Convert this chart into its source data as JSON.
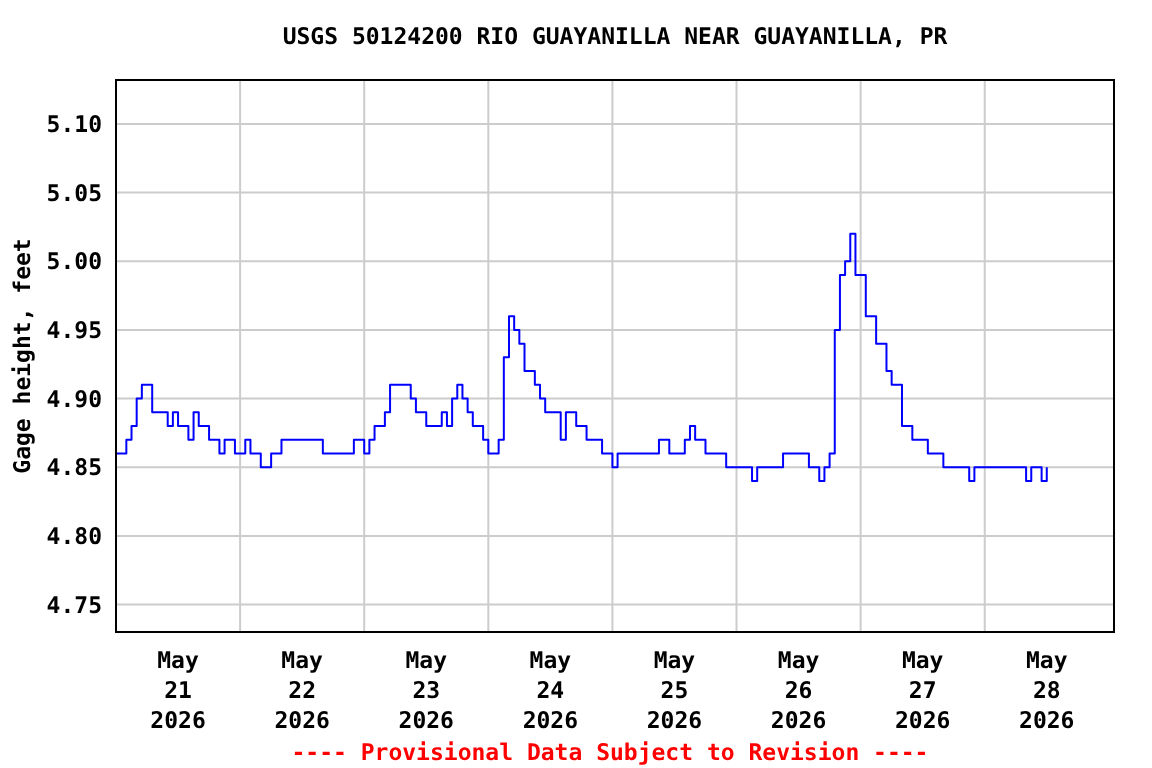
{
  "chart_data": {
    "type": "step",
    "title": "USGS 50124200 RIO GUAYANILLA NEAR GUAYANILLA, PR",
    "ylabel": "Gage height, feet",
    "annotations": [
      "---- Provisional Data Subject to Revision ----"
    ],
    "xlim": [
      "2026-05-21T00:00",
      "2026-05-29T01:00"
    ],
    "xticks": [
      {
        "value": "2026-05-21T12:00",
        "label": "May\n21\n2026"
      },
      {
        "value": "2026-05-22T00:00",
        "label": null
      },
      {
        "value": "2026-05-22T12:00",
        "label": "May\n22\n2026"
      },
      {
        "value": "2026-05-23T00:00",
        "label": null
      },
      {
        "value": "2026-05-23T12:00",
        "label": "May\n23\n2026"
      },
      {
        "value": "2026-05-24T00:00",
        "label": null
      },
      {
        "value": "2026-05-24T12:00",
        "label": "May\n24\n2026"
      },
      {
        "value": "2026-05-25T00:00",
        "label": null
      },
      {
        "value": "2026-05-25T12:00",
        "label": "May\n25\n2026"
      },
      {
        "value": "2026-05-26T00:00",
        "label": null
      },
      {
        "value": "2026-05-26T12:00",
        "label": "May\n26\n2026"
      },
      {
        "value": "2026-05-27T00:00",
        "label": null
      },
      {
        "value": "2026-05-27T12:00",
        "label": "May\n27\n2026"
      },
      {
        "value": "2026-05-28T00:00",
        "label": null
      },
      {
        "value": "2026-05-28T12:00",
        "label": "May\n28\n2026"
      }
    ],
    "ylim": [
      4.73,
      5.132
    ],
    "yticks": [
      {
        "value": 4.75,
        "label": "4.75"
      },
      {
        "value": 4.8,
        "label": "4.80"
      },
      {
        "value": 4.85,
        "label": "4.85"
      },
      {
        "value": 4.9,
        "label": "4.90"
      },
      {
        "value": 4.95,
        "label": "4.95"
      },
      {
        "value": 5.0,
        "label": "5.00"
      },
      {
        "value": 5.05,
        "label": "5.05"
      },
      {
        "value": 5.1,
        "label": "5.10"
      }
    ],
    "grid": true,
    "series": [
      {
        "color": "#0000ff",
        "x": [
          "2026-05-21T00:00",
          "2026-05-21T02:00",
          "2026-05-21T03:00",
          "2026-05-21T04:00",
          "2026-05-21T05:00",
          "2026-05-21T07:00",
          "2026-05-21T10:00",
          "2026-05-21T11:00",
          "2026-05-21T12:00",
          "2026-05-21T14:00",
          "2026-05-21T15:00",
          "2026-05-21T16:00",
          "2026-05-21T18:00",
          "2026-05-21T20:00",
          "2026-05-21T21:00",
          "2026-05-21T23:00",
          "2026-05-22T01:00",
          "2026-05-22T02:00",
          "2026-05-22T04:00",
          "2026-05-22T06:00",
          "2026-05-22T08:00",
          "2026-05-22T14:00",
          "2026-05-22T16:00",
          "2026-05-22T19:00",
          "2026-05-22T22:00",
          "2026-05-23T00:00",
          "2026-05-23T01:00",
          "2026-05-23T02:00",
          "2026-05-23T04:00",
          "2026-05-23T05:00",
          "2026-05-23T08:00",
          "2026-05-23T09:00",
          "2026-05-23T10:00",
          "2026-05-23T12:00",
          "2026-05-23T15:00",
          "2026-05-23T16:00",
          "2026-05-23T17:00",
          "2026-05-23T18:00",
          "2026-05-23T19:00",
          "2026-05-23T20:00",
          "2026-05-23T21:00",
          "2026-05-23T23:00",
          "2026-05-24T00:00",
          "2026-05-24T02:00",
          "2026-05-24T03:00",
          "2026-05-24T04:00",
          "2026-05-24T05:00",
          "2026-05-24T06:00",
          "2026-05-24T07:00",
          "2026-05-24T09:00",
          "2026-05-24T10:00",
          "2026-05-24T11:00",
          "2026-05-24T14:00",
          "2026-05-24T15:00",
          "2026-05-24T17:00",
          "2026-05-24T19:00",
          "2026-05-24T22:00",
          "2026-05-25T00:00",
          "2026-05-25T01:00",
          "2026-05-25T08:00",
          "2026-05-25T09:00",
          "2026-05-25T11:00",
          "2026-05-25T14:00",
          "2026-05-25T15:00",
          "2026-05-25T16:00",
          "2026-05-25T18:00",
          "2026-05-25T22:00",
          "2026-05-26T03:00",
          "2026-05-26T04:00",
          "2026-05-26T09:00",
          "2026-05-26T14:00",
          "2026-05-26T16:00",
          "2026-05-26T17:00",
          "2026-05-26T18:00",
          "2026-05-26T19:00",
          "2026-05-26T20:00",
          "2026-05-26T21:00",
          "2026-05-26T22:00",
          "2026-05-26T23:00",
          "2026-05-27T01:00",
          "2026-05-27T03:00",
          "2026-05-27T05:00",
          "2026-05-27T06:00",
          "2026-05-27T08:00",
          "2026-05-27T10:00",
          "2026-05-27T13:00",
          "2026-05-27T16:00",
          "2026-05-27T21:00",
          "2026-05-27T22:00",
          "2026-05-28T08:00",
          "2026-05-28T09:00",
          "2026-05-28T11:00",
          "2026-05-28T12:00"
        ],
        "values": [
          4.86,
          4.87,
          4.88,
          4.9,
          4.91,
          4.89,
          4.88,
          4.89,
          4.88,
          4.87,
          4.89,
          4.88,
          4.87,
          4.86,
          4.87,
          4.86,
          4.87,
          4.86,
          4.85,
          4.86,
          4.87,
          4.87,
          4.86,
          4.86,
          4.87,
          4.86,
          4.87,
          4.88,
          4.89,
          4.91,
          4.91,
          4.9,
          4.89,
          4.88,
          4.89,
          4.88,
          4.9,
          4.91,
          4.9,
          4.89,
          4.88,
          4.87,
          4.86,
          4.87,
          4.93,
          4.96,
          4.95,
          4.94,
          4.92,
          4.91,
          4.9,
          4.89,
          4.87,
          4.89,
          4.88,
          4.87,
          4.86,
          4.85,
          4.86,
          4.86,
          4.87,
          4.86,
          4.87,
          4.88,
          4.87,
          4.86,
          4.85,
          4.84,
          4.85,
          4.86,
          4.85,
          4.84,
          4.85,
          4.86,
          4.95,
          4.99,
          5.0,
          5.02,
          4.99,
          4.96,
          4.94,
          4.92,
          4.91,
          4.88,
          4.87,
          4.86,
          4.85,
          4.84,
          4.85,
          4.84,
          4.85,
          4.84,
          4.85
        ]
      }
    ]
  }
}
